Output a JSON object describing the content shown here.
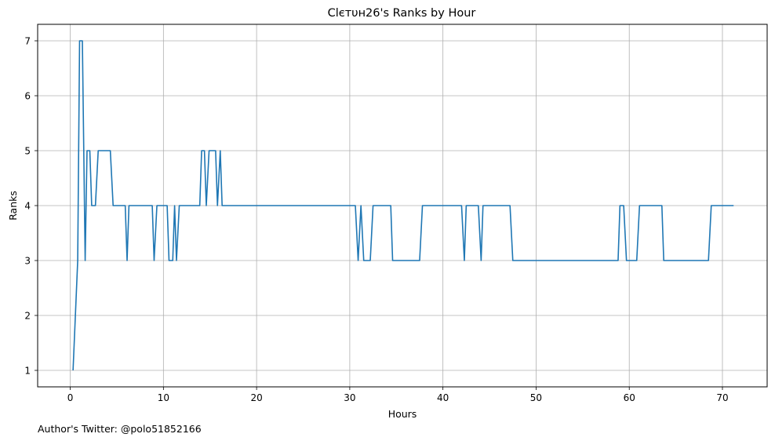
{
  "chart_data": {
    "type": "line",
    "title": "Clєтυн26's Ranks by Hour",
    "xlabel": "Hours",
    "ylabel": "Ranks",
    "xlim": [
      -3.5,
      74.8
    ],
    "ylim": [
      0.7,
      7.3
    ],
    "xticks": [
      0,
      10,
      20,
      30,
      40,
      50,
      60,
      70
    ],
    "yticks": [
      1,
      2,
      3,
      4,
      5,
      6,
      7
    ],
    "grid": true,
    "line_color": "#1f77b4",
    "series": [
      {
        "x": [
          0.3,
          0.8,
          1.0,
          1.3,
          1.6,
          1.8,
          2.1,
          2.3,
          2.7,
          3.0,
          4.3,
          4.6,
          5.9,
          6.1,
          6.3,
          8.8,
          9.0,
          9.3,
          10.4,
          10.6,
          11.0,
          11.2,
          11.4,
          11.7,
          13.9,
          14.1,
          14.4,
          14.6,
          14.9,
          15.6,
          15.8,
          16.1,
          16.3,
          30.6,
          30.9,
          31.2,
          31.5,
          32.2,
          32.5,
          34.4,
          34.6,
          37.5,
          37.8,
          42.0,
          42.3,
          42.5,
          43.8,
          44.1,
          44.3,
          47.2,
          47.5,
          58.8,
          59.0,
          59.4,
          59.7,
          60.8,
          61.1,
          63.5,
          63.7,
          68.5,
          68.8,
          71.2
        ],
        "values": [
          1,
          3,
          7,
          7,
          3,
          5,
          5,
          4,
          4,
          5,
          5,
          4,
          4,
          3,
          4,
          4,
          3,
          4,
          4,
          3,
          3,
          4,
          3,
          4,
          4,
          5,
          5,
          4,
          5,
          5,
          4,
          5,
          4,
          4,
          3,
          4,
          3,
          3,
          4,
          4,
          3,
          3,
          4,
          4,
          3,
          4,
          4,
          3,
          4,
          4,
          3,
          3,
          4,
          4,
          3,
          3,
          4,
          4,
          3,
          3,
          4,
          4
        ]
      }
    ]
  },
  "footer": {
    "credit": "Author's Twitter: @polo51852166"
  }
}
